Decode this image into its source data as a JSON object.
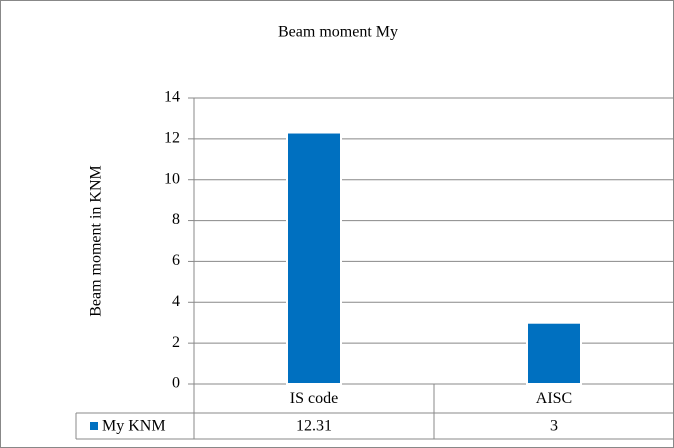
{
  "chart_data": {
    "type": "bar",
    "title": "Beam moment My",
    "y_label": "Beam moment in KNM",
    "categories": [
      "IS code",
      "AISC"
    ],
    "series": [
      {
        "name": "My KNM",
        "color": "#0070c0",
        "values": [
          12.31,
          3
        ]
      }
    ],
    "ylim": [
      0,
      14
    ],
    "yticks": [
      0,
      2,
      4,
      6,
      8,
      10,
      12,
      14
    ],
    "grid": true,
    "data_table": true
  }
}
